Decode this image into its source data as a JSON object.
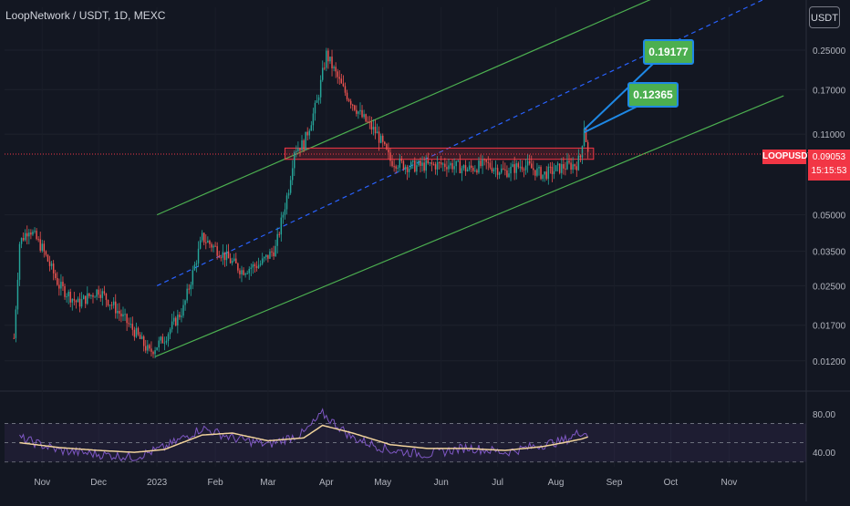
{
  "header": {
    "title": "LoopNetwork / USDT, 1D, MEXC",
    "currency_badge": "USDT"
  },
  "price_marker": {
    "ticker": "LOOPUSDT",
    "price": "0.09053",
    "countdown": "15:15:53",
    "color": "#f23645"
  },
  "callouts": [
    {
      "text": "0.19177"
    },
    {
      "text": "0.12365"
    }
  ],
  "chart_data": [
    {
      "type": "candlestick",
      "title": "LoopNetwork / USDT, 1D, MEXC",
      "y_scale": "log",
      "y_ticks": [
        "0.25000",
        "0.17000",
        "0.11000",
        "0.05000",
        "0.03500",
        "0.02500",
        "0.01700",
        "0.01200"
      ],
      "x_ticks": [
        "Nov",
        "Dec",
        "2023",
        "Feb",
        "Mar",
        "Apr",
        "May",
        "Jun",
        "Jul",
        "Aug",
        "Sep",
        "Oct",
        "Nov"
      ],
      "series": [
        {
          "kind": "close",
          "x": [
            "2022-10-17",
            "2022-10-20",
            "2022-10-25",
            "2022-11-01",
            "2022-11-10",
            "2022-11-20",
            "2022-12-01",
            "2022-12-10",
            "2022-12-20",
            "2022-12-28",
            "2023-01-05",
            "2023-01-15",
            "2023-01-25",
            "2023-02-05",
            "2023-02-15",
            "2023-02-25",
            "2023-03-05",
            "2023-03-12",
            "2023-03-15",
            "2023-03-20",
            "2023-03-27",
            "2023-04-01",
            "2023-04-10",
            "2023-04-20",
            "2023-04-28",
            "2023-05-05",
            "2023-05-15",
            "2023-05-25",
            "2023-06-05",
            "2023-06-15",
            "2023-06-25",
            "2023-07-05",
            "2023-07-15",
            "2023-07-25",
            "2023-08-05",
            "2023-08-12",
            "2023-08-14",
            "2023-08-16",
            "2023-08-18"
          ],
          "y": [
            0.015,
            0.038,
            0.044,
            0.036,
            0.025,
            0.021,
            0.024,
            0.02,
            0.016,
            0.013,
            0.015,
            0.02,
            0.04,
            0.034,
            0.029,
            0.031,
            0.036,
            0.065,
            0.095,
            0.1,
            0.15,
            0.24,
            0.17,
            0.13,
            0.11,
            0.085,
            0.08,
            0.081,
            0.082,
            0.078,
            0.082,
            0.076,
            0.082,
            0.074,
            0.08,
            0.082,
            0.088,
            0.12,
            0.09053
          ]
        }
      ],
      "annotations": [
        {
          "text": "0.19177",
          "type": "callout"
        },
        {
          "text": "0.12365",
          "type": "callout"
        },
        {
          "text": "LOOPUSDT",
          "type": "price-label"
        }
      ],
      "price_range_box": [
        0.086,
        0.096
      ],
      "channel": {
        "upper": [
          [
            "2023-01-01",
            0.05
          ],
          [
            "2023-10-15",
            0.5
          ]
        ],
        "lower": [
          [
            "2022-12-31",
            0.0125
          ],
          [
            "2023-11-30",
            0.16
          ]
        ],
        "midline_dashed": [
          [
            "2023-01-01",
            0.025
          ],
          [
            "2023-11-30",
            0.45
          ]
        ]
      }
    },
    {
      "type": "line",
      "title": "",
      "y_ticks": [
        "80.00",
        "40.00"
      ],
      "bands": [
        70,
        50,
        30
      ],
      "series": [
        {
          "name": "",
          "color": "#7e57c2",
          "x": [
            "2022-10-20",
            "2022-11-10",
            "2022-12-01",
            "2022-12-20",
            "2023-01-05",
            "2023-01-25",
            "2023-02-10",
            "2023-03-01",
            "2023-03-20",
            "2023-03-30",
            "2023-04-15",
            "2023-05-05",
            "2023-05-25",
            "2023-06-15",
            "2023-07-05",
            "2023-07-25",
            "2023-08-05",
            "2023-08-15",
            "2023-08-18"
          ],
          "y": [
            55,
            42,
            38,
            35,
            45,
            65,
            55,
            48,
            60,
            80,
            55,
            42,
            38,
            45,
            40,
            48,
            52,
            62,
            58
          ]
        },
        {
          "name": "",
          "color": "#f0d29b",
          "x": [
            "2022-10-20",
            "2022-11-10",
            "2022-12-01",
            "2022-12-20",
            "2023-01-05",
            "2023-01-25",
            "2023-02-10",
            "2023-03-01",
            "2023-03-20",
            "2023-03-30",
            "2023-04-15",
            "2023-05-05",
            "2023-05-25",
            "2023-06-15",
            "2023-07-05",
            "2023-07-25",
            "2023-08-05",
            "2023-08-15",
            "2023-08-18"
          ],
          "y": [
            50,
            45,
            42,
            40,
            43,
            58,
            60,
            52,
            55,
            68,
            60,
            48,
            44,
            44,
            42,
            46,
            50,
            54,
            56
          ]
        }
      ]
    }
  ]
}
